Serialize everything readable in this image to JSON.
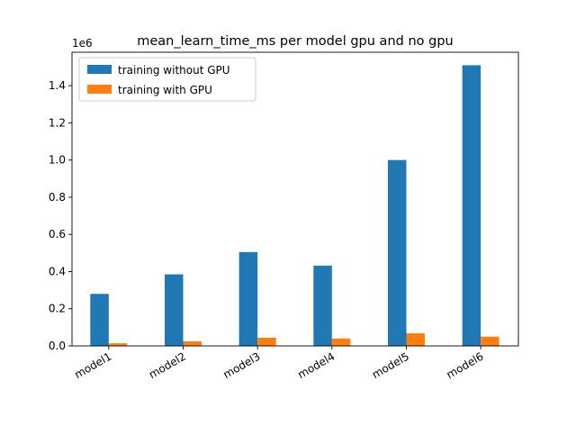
{
  "chart_data": {
    "type": "bar",
    "title": "mean_learn_time_ms per model gpu and no gpu",
    "xlabel": "",
    "ylabel": "",
    "y_offset_label": "1e6",
    "categories": [
      "model1",
      "model2",
      "model3",
      "model4",
      "model5",
      "model6"
    ],
    "series": [
      {
        "name": "training without GPU",
        "color": "#1f77b4",
        "values": [
          280000,
          385000,
          505000,
          432000,
          1000000,
          1510000
        ]
      },
      {
        "name": "training with GPU",
        "color": "#ff7f0e",
        "values": [
          14000,
          25000,
          44000,
          40000,
          68000,
          50000
        ]
      }
    ],
    "ylim": [
      0,
      1580000
    ],
    "yticks": [
      0,
      200000,
      400000,
      600000,
      800000,
      1000000,
      1200000,
      1400000
    ],
    "ytick_labels": [
      "0.0",
      "0.2",
      "0.4",
      "0.6",
      "0.8",
      "1.0",
      "1.2",
      "1.4"
    ],
    "legend_position": "top-left",
    "grid": false
  }
}
